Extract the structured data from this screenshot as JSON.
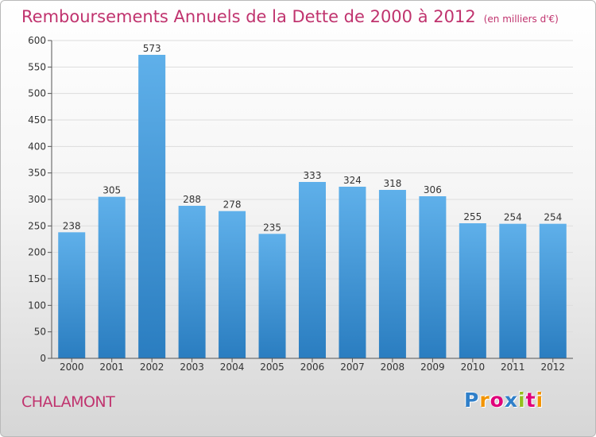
{
  "title": "Remboursements Annuels de la Dette de 2000 à 2012",
  "unit": "(en milliers d'€)",
  "commune": "CHALAMONT",
  "logo": {
    "letters": [
      "P",
      "r",
      "o",
      "x",
      "i",
      "t",
      "i"
    ],
    "colors": [
      "#2f7fc9",
      "#f29400",
      "#e0007a",
      "#2f7fc9",
      "#93c01f",
      "#e0007a",
      "#f29400"
    ]
  },
  "colors": {
    "bar_top": "#5fb0ea",
    "bar_bottom": "#2a7dc0",
    "title": "#c0336e",
    "grid": "#dddddd"
  },
  "chart_data": {
    "type": "bar",
    "title": "Remboursements Annuels de la Dette de 2000 à 2012",
    "categories": [
      "2000",
      "2001",
      "2002",
      "2003",
      "2004",
      "2005",
      "2006",
      "2007",
      "2008",
      "2009",
      "2010",
      "2011",
      "2012"
    ],
    "values": [
      238,
      305,
      573,
      288,
      278,
      235,
      333,
      324,
      318,
      306,
      255,
      254,
      254
    ],
    "ylim": [
      0,
      600
    ],
    "yticks": [
      0,
      50,
      100,
      150,
      200,
      250,
      300,
      350,
      400,
      450,
      500,
      550,
      600
    ],
    "grid": true,
    "data_labels": true
  }
}
